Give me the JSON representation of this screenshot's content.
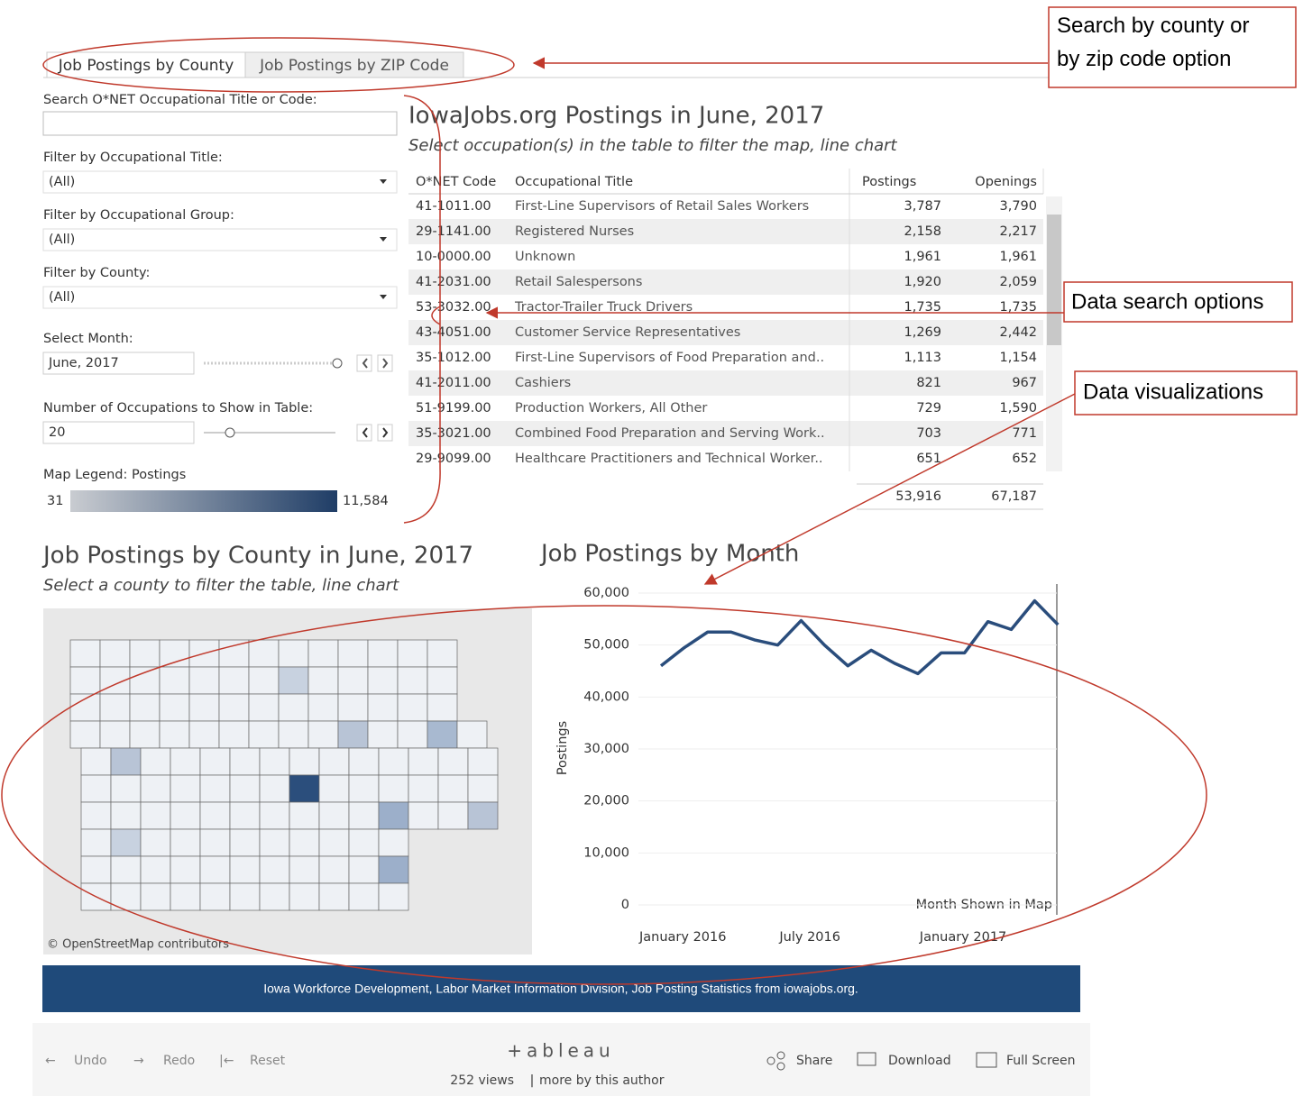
{
  "tabs": [
    "Job Postings by County",
    "Job Postings by ZIP Code"
  ],
  "callouts": [
    "Search by county or by zip code option",
    "Data search options",
    "Data visualizations"
  ],
  "filters": {
    "search_label": "Search O*NET Occupational Title or Code:",
    "title_label": "Filter by Occupational Title:",
    "title_value": "(All)",
    "group_label": "Filter by Occupational Group:",
    "group_value": "(All)",
    "county_label": "Filter by County:",
    "county_value": "(All)",
    "month_label": "Select Month:",
    "month_value": "June, 2017",
    "count_label": "Number of Occupations to Show in Table:",
    "count_value": "20"
  },
  "legend": {
    "title": "Map Legend: Postings",
    "min": "31",
    "max": "11,584"
  },
  "table": {
    "title": "IowaJobs.org Postings in June, 2017",
    "subtitle": "Select occupation(s) in the table to filter the map, line chart",
    "headers": [
      "O*NET Code",
      "Occupational Title",
      "Postings",
      "Openings"
    ],
    "rows": [
      [
        "41-1011.00",
        "First-Line Supervisors of Retail Sales Workers",
        "3,787",
        "3,790"
      ],
      [
        "29-1141.00",
        "Registered Nurses",
        "2,158",
        "2,217"
      ],
      [
        "10-0000.00",
        "Unknown",
        "1,961",
        "1,961"
      ],
      [
        "41-2031.00",
        "Retail Salespersons",
        "1,920",
        "2,059"
      ],
      [
        "53-3032.00",
        "Tractor-Trailer Truck Drivers",
        "1,735",
        "1,735"
      ],
      [
        "43-4051.00",
        "Customer Service Representatives",
        "1,269",
        "2,442"
      ],
      [
        "35-1012.00",
        "First-Line Supervisors of Food Preparation and..",
        "1,113",
        "1,154"
      ],
      [
        "41-2011.00",
        "Cashiers",
        "821",
        "967"
      ],
      [
        "51-9199.00",
        "Production Workers, All Other",
        "729",
        "1,590"
      ],
      [
        "35-3021.00",
        "Combined Food Preparation and Serving Work..",
        "703",
        "771"
      ],
      [
        "29-9099.00",
        "Healthcare Practitioners and Technical Worker..",
        "651",
        "652"
      ]
    ],
    "totals": [
      "53,916",
      "67,187"
    ]
  },
  "map": {
    "title": "Job Postings by County in June, 2017",
    "subtitle": "Select a county to filter the table, line chart",
    "credit": "© OpenStreetMap contributors"
  },
  "chart_data": {
    "type": "line",
    "title": "Job Postings by Month",
    "y_label": "Postings",
    "annotation": "Month Shown in Map",
    "categories": [
      "January 2016",
      null,
      null,
      null,
      null,
      null,
      "July 2016",
      null,
      null,
      null,
      null,
      null,
      "January 2017",
      null,
      null,
      null,
      null,
      null
    ],
    "values": [
      46000,
      49500,
      52500,
      52500,
      51000,
      50000,
      54700,
      50000,
      46000,
      49000,
      46500,
      44500,
      48500,
      48500,
      54500,
      53000,
      58500,
      53916
    ],
    "color": "#2a4d7c",
    "ylim": [
      0,
      60000
    ],
    "yticks": [
      0,
      {
        "value": 10000,
        "label": "10,000"
      },
      {
        "value": 20000,
        "label": "20,000"
      },
      {
        "value": 30000,
        "label": "30,000"
      },
      {
        "value": 40000,
        "label": "40,000"
      },
      {
        "value": 50000,
        "label": "50,000"
      },
      {
        "value": 60000,
        "label": "60,000"
      }
    ],
    "grid": true
  },
  "footer": {
    "banner": "Iowa Workforce Development, Labor Market Information Division, Job Posting Statistics from iowajobs.org.",
    "undo": "Undo",
    "redo": "Redo",
    "reset": "Reset",
    "logo": "+ableau",
    "views": "252 views",
    "author": "more by this author",
    "share": "Share",
    "download": "Download",
    "fullscreen": "Full Screen"
  }
}
